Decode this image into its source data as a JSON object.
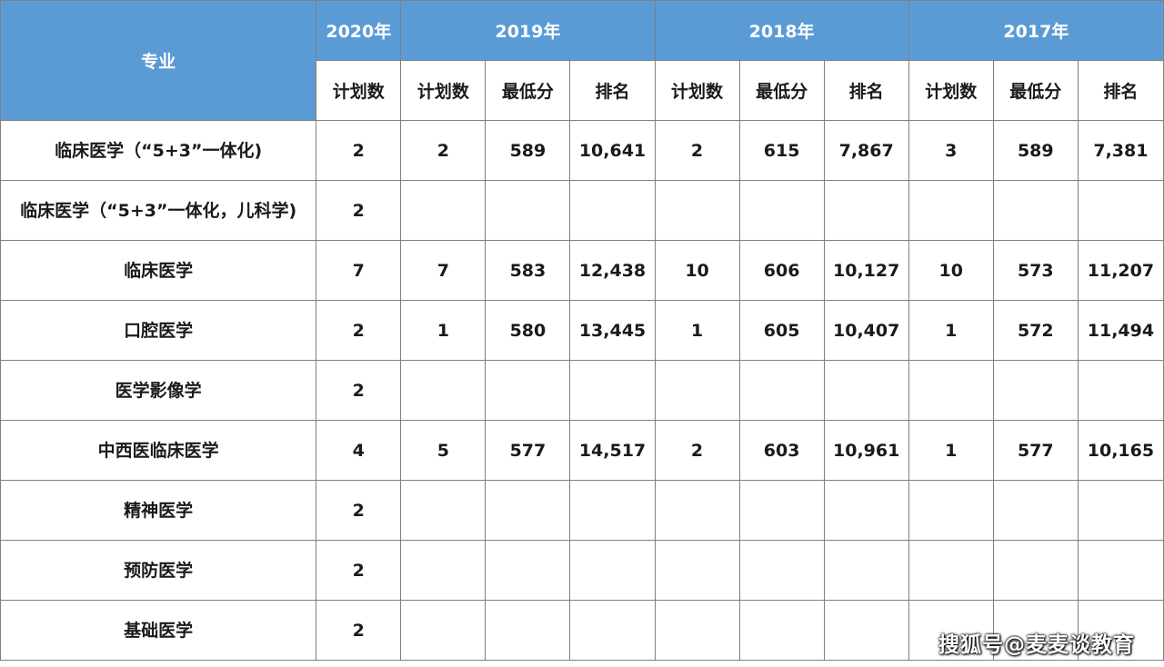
{
  "header": {
    "major_label": "专业",
    "years": [
      "2020年",
      "2019年",
      "2018年",
      "2017年"
    ],
    "sub": {
      "plan": "计划数",
      "min_score": "最低分",
      "rank": "排名"
    }
  },
  "rows": [
    {
      "major": "临床医学（“5+3”一体化)",
      "p2020": "2",
      "p2019": "2",
      "s2019": "589",
      "r2019": "10,641",
      "p2018": "2",
      "s2018": "615",
      "r2018": "7,867",
      "p2017": "3",
      "s2017": "589",
      "r2017": "7,381"
    },
    {
      "major": "临床医学（“5+3”一体化，儿科学)",
      "p2020": "2",
      "p2019": "",
      "s2019": "",
      "r2019": "",
      "p2018": "",
      "s2018": "",
      "r2018": "",
      "p2017": "",
      "s2017": "",
      "r2017": ""
    },
    {
      "major": "临床医学",
      "p2020": "7",
      "p2019": "7",
      "s2019": "583",
      "r2019": "12,438",
      "p2018": "10",
      "s2018": "606",
      "r2018": "10,127",
      "p2017": "10",
      "s2017": "573",
      "r2017": "11,207"
    },
    {
      "major": "口腔医学",
      "p2020": "2",
      "p2019": "1",
      "s2019": "580",
      "r2019": "13,445",
      "p2018": "1",
      "s2018": "605",
      "r2018": "10,407",
      "p2017": "1",
      "s2017": "572",
      "r2017": "11,494"
    },
    {
      "major": "医学影像学",
      "p2020": "2",
      "p2019": "",
      "s2019": "",
      "r2019": "",
      "p2018": "",
      "s2018": "",
      "r2018": "",
      "p2017": "",
      "s2017": "",
      "r2017": ""
    },
    {
      "major": "中西医临床医学",
      "p2020": "4",
      "p2019": "5",
      "s2019": "577",
      "r2019": "14,517",
      "p2018": "2",
      "s2018": "603",
      "r2018": "10,961",
      "p2017": "1",
      "s2017": "577",
      "r2017": "10,165"
    },
    {
      "major": "精神医学",
      "p2020": "2",
      "p2019": "",
      "s2019": "",
      "r2019": "",
      "p2018": "",
      "s2018": "",
      "r2018": "",
      "p2017": "",
      "s2017": "",
      "r2017": ""
    },
    {
      "major": "预防医学",
      "p2020": "2",
      "p2019": "",
      "s2019": "",
      "r2019": "",
      "p2018": "",
      "s2018": "",
      "r2018": "",
      "p2017": "",
      "s2017": "",
      "r2017": ""
    },
    {
      "major": "基础医学",
      "p2020": "2",
      "p2019": "",
      "s2019": "",
      "r2019": "",
      "p2018": "",
      "s2018": "",
      "r2018": "",
      "p2017": "",
      "s2017": "",
      "r2017": ""
    }
  ],
  "watermark": "搜狐号@麦麦谈教育",
  "colors": {
    "header_bg": "#5b9bd5",
    "header_text": "#ffffff",
    "border": "#7f7f7f"
  }
}
